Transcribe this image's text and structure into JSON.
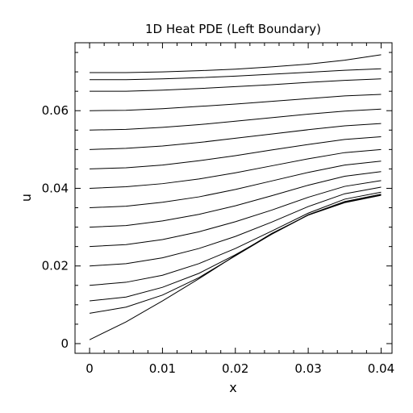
{
  "chart_data": {
    "type": "line",
    "title": "1D Heat PDE (Left Boundary)",
    "xlabel": "x",
    "ylabel": "u",
    "xlim": [
      -0.002,
      0.0415
    ],
    "ylim": [
      -0.0025,
      0.0775
    ],
    "x_ticks": [
      0,
      0.01,
      0.02,
      0.03,
      0.04
    ],
    "x_tick_labels": [
      "0",
      "0.01",
      "0.02",
      "0.03",
      "0.04"
    ],
    "y_ticks": [
      0,
      0.02,
      0.04,
      0.06
    ],
    "y_tick_labels": [
      "0",
      "0.02",
      "0.04",
      "0.06"
    ],
    "grid": false,
    "line_color": "#000000",
    "x": [
      0,
      0.005,
      0.01,
      0.015,
      0.02,
      0.025,
      0.03,
      0.035,
      0.04
    ],
    "series": [
      {
        "values": [
          0.001,
          0.0056,
          0.011,
          0.0167,
          0.0227,
          0.0284,
          0.0331,
          0.0363,
          0.0382
        ]
      },
      {
        "values": [
          0.0078,
          0.0094,
          0.0125,
          0.017,
          0.0226,
          0.0282,
          0.0331,
          0.0364,
          0.0383
        ]
      },
      {
        "values": [
          0.011,
          0.012,
          0.0145,
          0.0181,
          0.0229,
          0.0282,
          0.0332,
          0.0366,
          0.0385
        ]
      },
      {
        "values": [
          0.015,
          0.0158,
          0.0176,
          0.0206,
          0.0245,
          0.029,
          0.0336,
          0.0372,
          0.039
        ]
      },
      {
        "values": [
          0.02,
          0.0206,
          0.0221,
          0.0245,
          0.0276,
          0.0313,
          0.0353,
          0.0386,
          0.0403
        ]
      },
      {
        "values": [
          0.025,
          0.0255,
          0.0268,
          0.0288,
          0.0314,
          0.0344,
          0.0377,
          0.0405,
          0.042
        ]
      },
      {
        "values": [
          0.03,
          0.0304,
          0.0316,
          0.0333,
          0.0355,
          0.0381,
          0.0408,
          0.0431,
          0.0443
        ]
      },
      {
        "values": [
          0.035,
          0.0354,
          0.0364,
          0.0378,
          0.0397,
          0.0419,
          0.0441,
          0.046,
          0.047
        ]
      },
      {
        "values": [
          0.04,
          0.0404,
          0.0412,
          0.0424,
          0.044,
          0.0458,
          0.0476,
          0.0492,
          0.05
        ]
      },
      {
        "values": [
          0.045,
          0.0453,
          0.046,
          0.0471,
          0.0484,
          0.0499,
          0.0513,
          0.0526,
          0.0533
        ]
      },
      {
        "values": [
          0.05,
          0.0503,
          0.0509,
          0.0518,
          0.0529,
          0.054,
          0.0551,
          0.0561,
          0.0567
        ]
      },
      {
        "values": [
          0.055,
          0.0552,
          0.0557,
          0.0564,
          0.0573,
          0.0582,
          0.0591,
          0.0599,
          0.0604
        ]
      },
      {
        "values": [
          0.06,
          0.0601,
          0.0605,
          0.0611,
          0.0617,
          0.0624,
          0.0631,
          0.0638,
          0.0642
        ]
      },
      {
        "values": [
          0.065,
          0.065,
          0.0653,
          0.0657,
          0.0662,
          0.0667,
          0.0673,
          0.0678,
          0.0682
        ]
      },
      {
        "values": [
          0.068,
          0.068,
          0.0682,
          0.0685,
          0.0689,
          0.0694,
          0.0699,
          0.0704,
          0.0708
        ]
      },
      {
        "values": [
          0.0698,
          0.0698,
          0.07,
          0.0703,
          0.0707,
          0.0713,
          0.072,
          0.073,
          0.0744
        ]
      }
    ]
  }
}
